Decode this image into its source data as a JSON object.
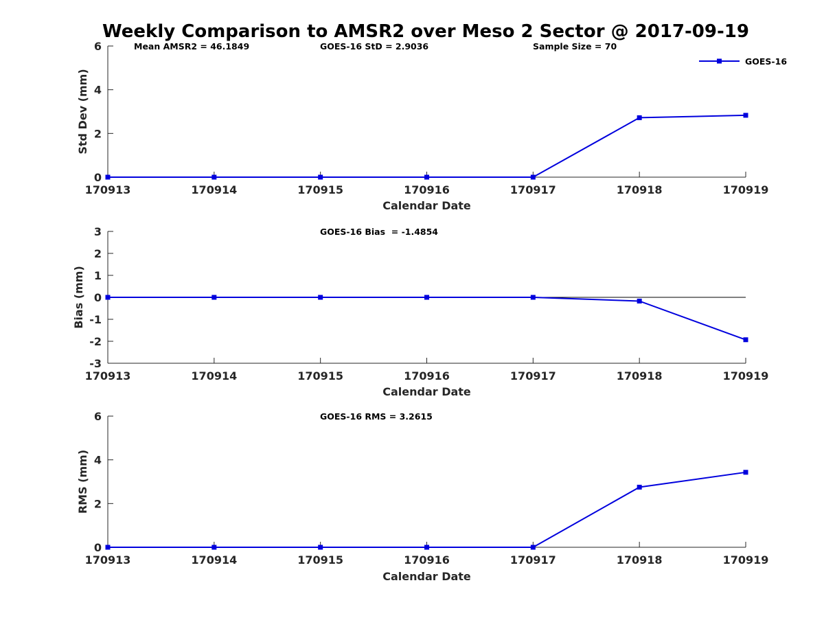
{
  "title": "Weekly Comparison to AMSR2 over Meso 2 Sector @ 2017-09-19",
  "colors": {
    "series": "#0000dd",
    "axis": "#262626"
  },
  "chart_data": [
    {
      "type": "line",
      "name": "stddev",
      "categories": [
        "170913",
        "170914",
        "170915",
        "170916",
        "170917",
        "170918",
        "170919"
      ],
      "series": [
        {
          "name": "GOES-16",
          "values": [
            0,
            0,
            0,
            0,
            0,
            2.72,
            2.83
          ]
        }
      ],
      "xlabel": "Calendar Date",
      "ylabel": "Std Dev (mm)",
      "ylim": [
        0,
        6
      ],
      "yticks": [
        0,
        2,
        4,
        6
      ],
      "annotations": [
        "Mean AMSR2 = 46.1849",
        "GOES-16 StD = 2.9036",
        "Sample Size = 70"
      ],
      "legend": {
        "position": "top-right",
        "entries": [
          "GOES-16"
        ]
      },
      "zero_line": false
    },
    {
      "type": "line",
      "name": "bias",
      "categories": [
        "170913",
        "170914",
        "170915",
        "170916",
        "170917",
        "170918",
        "170919"
      ],
      "series": [
        {
          "name": "GOES-16",
          "values": [
            0,
            0,
            0,
            0,
            0,
            -0.17,
            -1.93
          ]
        }
      ],
      "xlabel": "Calendar Date",
      "ylabel": "Bias (mm)",
      "ylim": [
        -3,
        3
      ],
      "yticks": [
        -3,
        -2,
        -1,
        0,
        1,
        2,
        3
      ],
      "annotations": [
        "GOES-16 Bias  = -1.4854"
      ],
      "zero_line": true
    },
    {
      "type": "line",
      "name": "rms",
      "categories": [
        "170913",
        "170914",
        "170915",
        "170916",
        "170917",
        "170918",
        "170919"
      ],
      "series": [
        {
          "name": "GOES-16",
          "values": [
            0,
            0,
            0,
            0,
            0,
            2.75,
            3.43
          ]
        }
      ],
      "xlabel": "Calendar Date",
      "ylabel": "RMS (mm)",
      "ylim": [
        0,
        6
      ],
      "yticks": [
        0,
        2,
        4,
        6
      ],
      "annotations": [
        "GOES-16 RMS = 3.2615"
      ],
      "zero_line": false
    }
  ]
}
